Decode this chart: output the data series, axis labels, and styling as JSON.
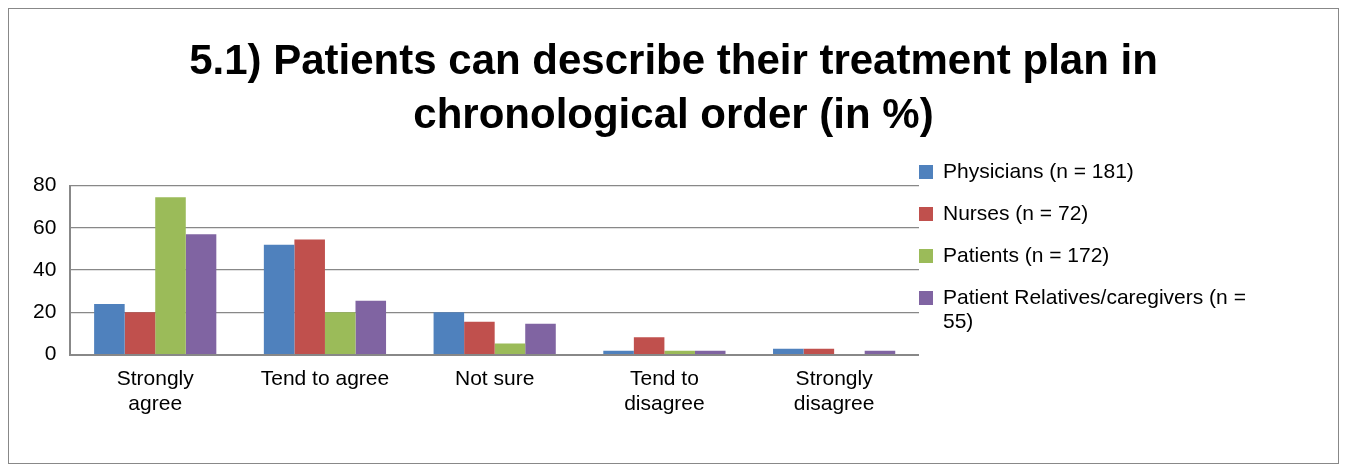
{
  "chart_data": {
    "type": "bar",
    "title": "5.1) Patients can describe their treatment plan in chronological order (in %)",
    "categories": [
      "Strongly agree",
      "Tend to agree",
      "Not sure",
      "Tend to disagree",
      "Strongly disagree"
    ],
    "series": [
      {
        "name": "Physicians (n = 181)",
        "color": "#4f81bd",
        "values": [
          24,
          52,
          20,
          1.8,
          2.8
        ]
      },
      {
        "name": "Nurses (n = 72)",
        "color": "#c0504d",
        "values": [
          20,
          54.5,
          15.6,
          8.2,
          2.8
        ]
      },
      {
        "name": "Patients (n = 172)",
        "color": "#9bbb59",
        "values": [
          74.5,
          20,
          5.3,
          1.8,
          0
        ]
      },
      {
        "name": "Patient Relatives/caregivers (n = 55)",
        "color": "#8064a2",
        "values": [
          57,
          25.5,
          14.6,
          1.8,
          1.8
        ]
      }
    ],
    "ylim": [
      0,
      80
    ],
    "yticks": [
      0,
      20,
      40,
      60,
      80
    ],
    "grid": "y",
    "legend": "right"
  }
}
